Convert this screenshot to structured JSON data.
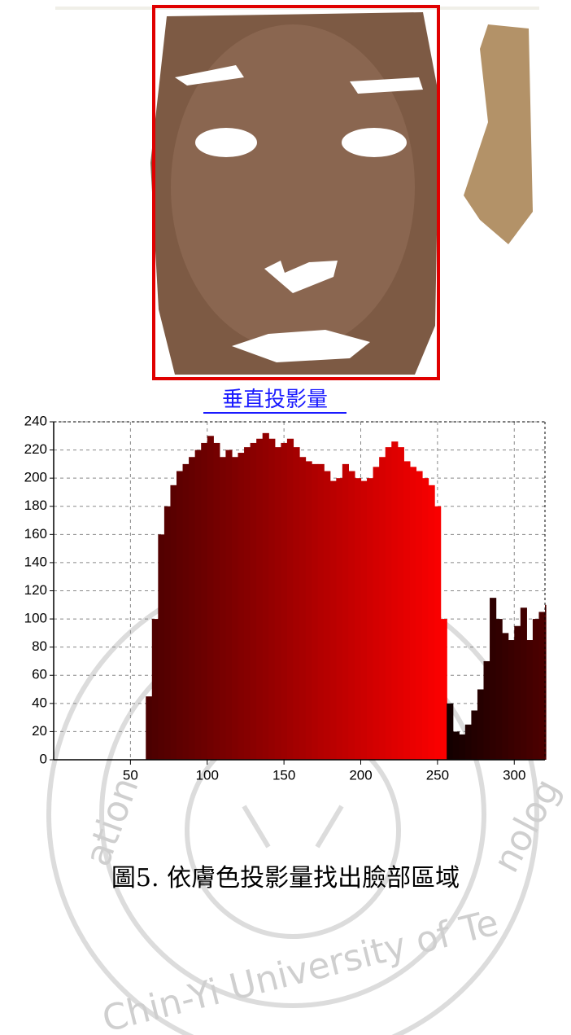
{
  "chart_data": {
    "type": "bar",
    "title": "垂直投影量",
    "x": [
      0,
      4,
      8,
      12,
      16,
      20,
      24,
      28,
      32,
      36,
      40,
      44,
      48,
      52,
      56,
      60,
      64,
      68,
      72,
      76,
      80,
      84,
      88,
      92,
      96,
      100,
      104,
      108,
      112,
      116,
      120,
      124,
      128,
      132,
      136,
      140,
      144,
      148,
      152,
      156,
      160,
      164,
      168,
      172,
      176,
      180,
      184,
      188,
      192,
      196,
      200,
      204,
      208,
      212,
      216,
      220,
      224,
      228,
      232,
      236,
      240,
      244,
      248,
      252,
      256,
      260,
      264,
      268,
      272,
      276,
      280,
      284,
      288,
      292,
      296,
      300,
      304,
      308,
      312,
      316,
      320
    ],
    "values": [
      0,
      0,
      0,
      0,
      0,
      0,
      0,
      0,
      0,
      0,
      0,
      0,
      0,
      0,
      0,
      45,
      100,
      160,
      180,
      195,
      205,
      210,
      215,
      220,
      225,
      230,
      225,
      215,
      220,
      215,
      218,
      222,
      225,
      228,
      232,
      228,
      222,
      225,
      228,
      222,
      215,
      212,
      210,
      210,
      205,
      198,
      200,
      210,
      205,
      200,
      198,
      200,
      208,
      215,
      222,
      226,
      222,
      212,
      208,
      205,
      200,
      195,
      180,
      100,
      40,
      20,
      18,
      25,
      35,
      50,
      70,
      115,
      100,
      90,
      85,
      95,
      108,
      85,
      100,
      105,
      110
    ],
    "color_low": "#140000",
    "color_high": "#ff0000",
    "title_color": "#1a1aff",
    "xlim": [
      0,
      320
    ],
    "ylim": [
      0,
      240
    ],
    "xticks": [
      50,
      100,
      150,
      200,
      250,
      300
    ],
    "yticks": [
      0,
      20,
      40,
      60,
      80,
      100,
      120,
      140,
      160,
      180,
      200,
      220,
      240
    ],
    "grid": true
  },
  "caption": "圖5. 依膚色投影量找出臉部區域",
  "watermark": [
    "ation",
    "Chin-Yi University of Te",
    "nolog"
  ]
}
